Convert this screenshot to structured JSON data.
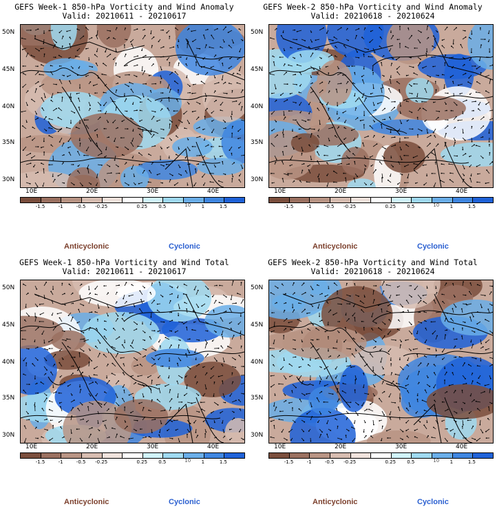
{
  "panels": [
    {
      "id": "p1",
      "title": "GEFS Week-1 850-hPa Vorticity and Wind Anomaly",
      "valid": "Valid: 20210611 - 20210617",
      "seed": 11
    },
    {
      "id": "p2",
      "title": "GEFS Week-2 850-hPa Vorticity and Wind Anomaly",
      "valid": "Valid: 20210618 - 20210624",
      "seed": 23
    },
    {
      "id": "p3",
      "title": "GEFS Week-1 850-hPa Vorticity and Wind Total",
      "valid": "Valid: 20210611 - 20210617",
      "seed": 37
    },
    {
      "id": "p4",
      "title": "GEFS Week-2 850-hPa Vorticity and Wind Total",
      "valid": "Valid: 20210618 - 20210624",
      "seed": 53
    }
  ],
  "lat_labels": [
    "50N",
    "45N",
    "40N",
    "35N",
    "30N"
  ],
  "lon_labels": [
    "10E",
    "20E",
    "30E",
    "40E"
  ],
  "colorbar": {
    "colors": [
      "#7a4e3c",
      "#9a7060",
      "#b89484",
      "#d6bcb0",
      "#efe2dc",
      "#ffffff",
      "#d0f3fb",
      "#9fd9f0",
      "#6aaee8",
      "#3f86e0",
      "#1f62d8"
    ],
    "tick_labels": [
      "-1.5",
      "-1",
      "-0.5",
      "-0.25",
      "0.25",
      "0.5",
      "1",
      "1.5"
    ],
    "scale_label": "10"
  },
  "legend": {
    "anticyclonic": "Anticyclonic",
    "cyclonic": "Cyclonic",
    "anticyclonic_color": "#7b3f2c",
    "cyclonic_color": "#2a5fd0"
  }
}
